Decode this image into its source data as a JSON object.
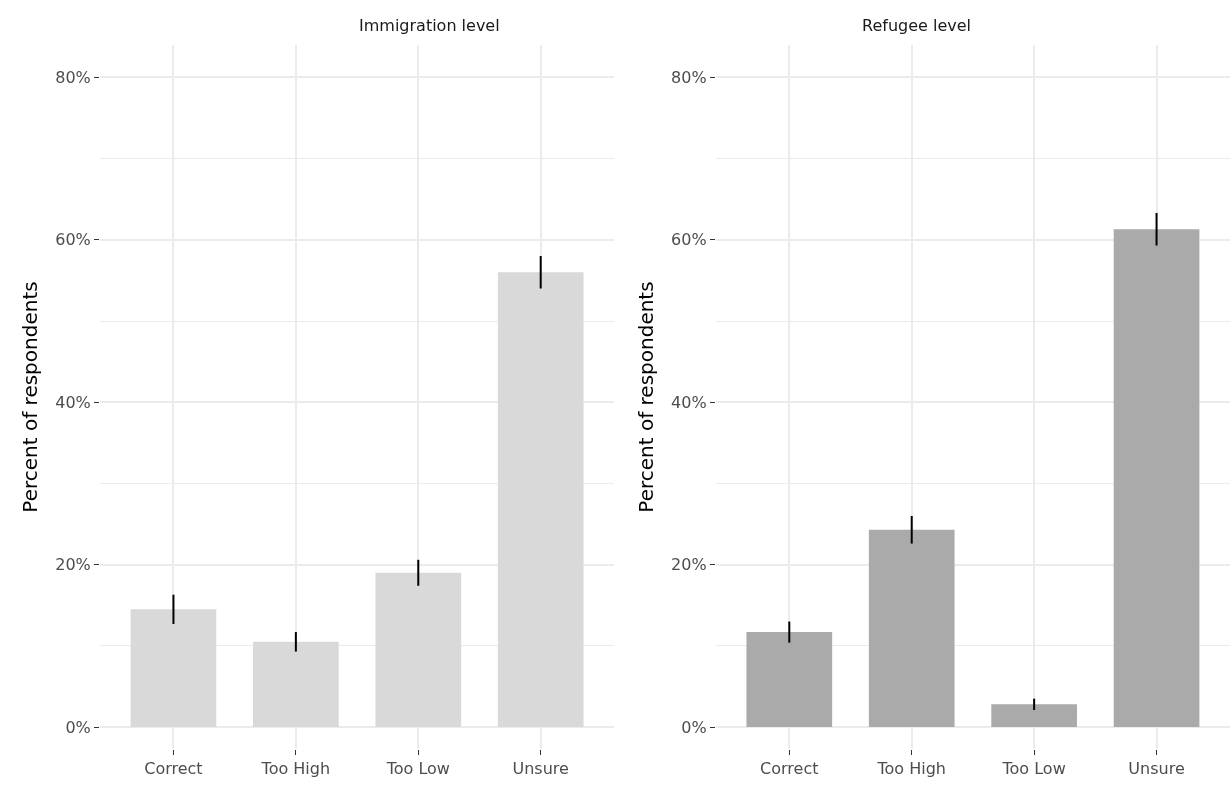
{
  "chart_data": [
    {
      "type": "bar",
      "title": "Immigration level",
      "ylabel": "Percent of respondents",
      "categories": [
        "Correct",
        "Too High",
        "Too Low",
        "Unsure"
      ],
      "series": [
        {
          "color": "#d9d9d9",
          "values": [
            14.5,
            10.5,
            19,
            56
          ],
          "errors": [
            1.8,
            1.2,
            1.6,
            2
          ]
        }
      ],
      "ylim": [
        -2.7,
        84
      ],
      "yticks": [
        {
          "value": 0,
          "label": "0%"
        },
        {
          "value": 10,
          "label": null
        },
        {
          "value": 20,
          "label": "20%"
        },
        {
          "value": 30,
          "label": null
        },
        {
          "value": 40,
          "label": "40%"
        },
        {
          "value": 50,
          "label": null
        },
        {
          "value": 60,
          "label": "60%"
        },
        {
          "value": 70,
          "label": null
        },
        {
          "value": 80,
          "label": "80%"
        }
      ],
      "grid": true
    },
    {
      "type": "bar",
      "title": "Refugee level",
      "ylabel": "Percent of respondents",
      "categories": [
        "Correct",
        "Too High",
        "Too Low",
        "Unsure"
      ],
      "series": [
        {
          "color": "#aaaaaa",
          "values": [
            11.7,
            24.3,
            2.8,
            61.3
          ],
          "errors": [
            1.3,
            1.7,
            0.7,
            2
          ]
        }
      ],
      "ylim": [
        -2.7,
        84
      ],
      "yticks": [
        {
          "value": 0,
          "label": "0%"
        },
        {
          "value": 10,
          "label": null
        },
        {
          "value": 20,
          "label": "20%"
        },
        {
          "value": 30,
          "label": null
        },
        {
          "value": 40,
          "label": "40%"
        },
        {
          "value": 50,
          "label": null
        },
        {
          "value": 60,
          "label": "60%"
        },
        {
          "value": 70,
          "label": null
        },
        {
          "value": 80,
          "label": "80%"
        }
      ],
      "grid": true
    }
  ]
}
